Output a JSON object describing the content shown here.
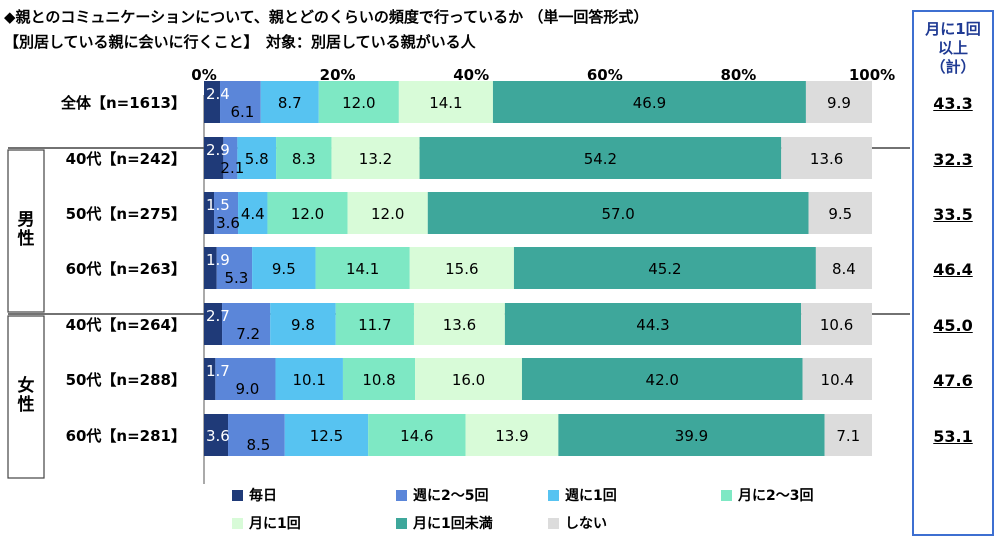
{
  "title": {
    "line1": "◆親とのコミュニケーションについて、親とどのくらいの頻度で行っているか （単一回答形式）",
    "line2": "【別居している親に会いに行くこと】　対象：別居している親がいる人"
  },
  "summary": {
    "header": [
      "月に1回",
      "以上",
      "（計）"
    ],
    "values": [
      "43.3",
      "32.3",
      "33.5",
      "46.4",
      "45.0",
      "47.6",
      "53.1"
    ]
  },
  "groups": [
    {
      "label": [
        "男",
        "性"
      ]
    },
    {
      "label": [
        "女",
        "性"
      ]
    }
  ],
  "chart_data": {
    "type": "bar",
    "orientation": "horizontal",
    "stacked": true,
    "percent": true,
    "xlim": [
      0,
      100
    ],
    "x_ticks": [
      "0%",
      "20%",
      "40%",
      "60%",
      "80%",
      "100%"
    ],
    "categories": [
      "全体【n=1613】",
      "40代【n=242】",
      "50代【n=275】",
      "60代【n=263】",
      "40代【n=264】",
      "50代【n=288】",
      "60代【n=281】"
    ],
    "series": [
      {
        "name": "毎日",
        "color": "#1f3a78",
        "values": [
          2.4,
          2.9,
          1.5,
          1.9,
          2.7,
          1.7,
          3.6
        ]
      },
      {
        "name": "週に2〜5回",
        "color": "#5b86d9",
        "values": [
          6.1,
          2.1,
          3.6,
          5.3,
          7.2,
          9.0,
          8.5
        ]
      },
      {
        "name": "週に1回",
        "color": "#57c3f1",
        "values": [
          8.7,
          5.8,
          4.4,
          9.5,
          9.8,
          10.1,
          12.5
        ]
      },
      {
        "name": "月に2〜3回",
        "color": "#7ee8c4",
        "values": [
          12.0,
          8.3,
          12.0,
          14.1,
          11.7,
          10.8,
          14.6
        ]
      },
      {
        "name": "月に1回",
        "color": "#d8fbd8",
        "values": [
          14.1,
          13.2,
          12.0,
          15.6,
          13.6,
          16.0,
          13.9
        ]
      },
      {
        "name": "月に1回未満",
        "color": "#3ea79b",
        "values": [
          46.9,
          54.2,
          57.0,
          45.2,
          44.3,
          42.0,
          39.9
        ]
      },
      {
        "name": "しない",
        "color": "#dcdcdc",
        "values": [
          9.9,
          13.6,
          9.5,
          8.4,
          10.6,
          10.4,
          7.1
        ]
      }
    ]
  }
}
